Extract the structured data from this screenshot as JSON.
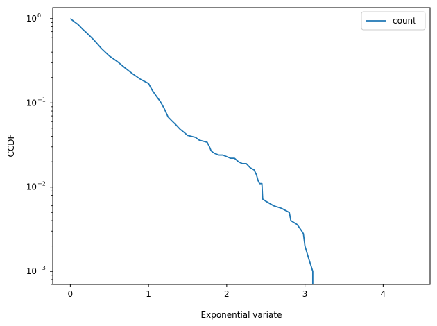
{
  "chart_data": {
    "type": "line",
    "title": "",
    "xlabel": "Exponential variate",
    "ylabel": "CCDF",
    "xscale": "linear",
    "yscale": "log",
    "xlim": [
      -0.225,
      4.6
    ],
    "ylim": [
      0.0007,
      1.35
    ],
    "xticks": [
      0,
      1,
      2,
      3,
      4
    ],
    "xtick_labels": [
      "0",
      "1",
      "2",
      "3",
      "4"
    ],
    "yticks": [
      1,
      0.1,
      0.01,
      0.001
    ],
    "ytick_labels": [
      "10^0",
      "10^-1",
      "10^-2",
      "10^-3"
    ],
    "grid": false,
    "legend_position": "top-right",
    "series": [
      {
        "name": "count",
        "color": "#1f77b4",
        "x": [
          0.0,
          0.05,
          0.1,
          0.15,
          0.2,
          0.3,
          0.4,
          0.5,
          0.6,
          0.7,
          0.8,
          0.9,
          1.0,
          1.05,
          1.1,
          1.15,
          1.2,
          1.25,
          1.3,
          1.35,
          1.4,
          1.45,
          1.5,
          1.55,
          1.6,
          1.65,
          1.7,
          1.75,
          1.78,
          1.8,
          1.82,
          1.85,
          1.9,
          1.95,
          2.0,
          2.05,
          2.1,
          2.15,
          2.2,
          2.25,
          2.3,
          2.35,
          2.38,
          2.4,
          2.42,
          2.45,
          2.46,
          2.48,
          2.5,
          2.6,
          2.7,
          2.8,
          2.82,
          2.9,
          2.95,
          2.98,
          3.0,
          3.05,
          3.1,
          3.1
        ],
        "y": [
          1.0,
          0.92,
          0.85,
          0.76,
          0.69,
          0.56,
          0.44,
          0.36,
          0.31,
          0.26,
          0.22,
          0.19,
          0.17,
          0.14,
          0.12,
          0.104,
          0.086,
          0.068,
          0.061,
          0.055,
          0.049,
          0.045,
          0.041,
          0.04,
          0.039,
          0.036,
          0.035,
          0.034,
          0.03,
          0.027,
          0.026,
          0.025,
          0.024,
          0.024,
          0.023,
          0.022,
          0.022,
          0.02,
          0.019,
          0.019,
          0.017,
          0.016,
          0.014,
          0.012,
          0.011,
          0.011,
          0.0072,
          0.007,
          0.0068,
          0.006,
          0.0056,
          0.005,
          0.004,
          0.0036,
          0.0031,
          0.0028,
          0.002,
          0.0014,
          0.001,
          0.0007
        ]
      }
    ]
  }
}
